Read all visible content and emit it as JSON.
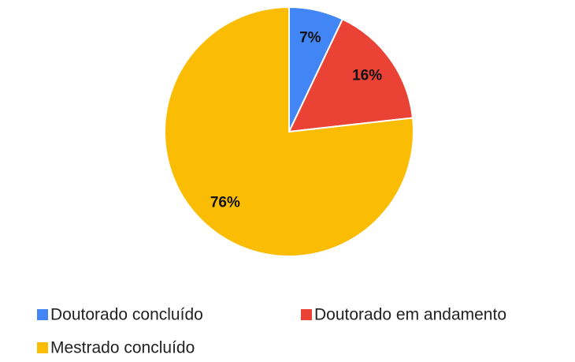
{
  "chart_data": {
    "type": "pie",
    "categories": [
      "Doutorado concluído",
      "Doutorado em andamento",
      "Mestrado concluído"
    ],
    "values": [
      7,
      16,
      76
    ],
    "value_labels": [
      "7%",
      "16%",
      "76%"
    ],
    "colors": [
      "#4285f4",
      "#ea4335",
      "#fbbc04"
    ]
  }
}
